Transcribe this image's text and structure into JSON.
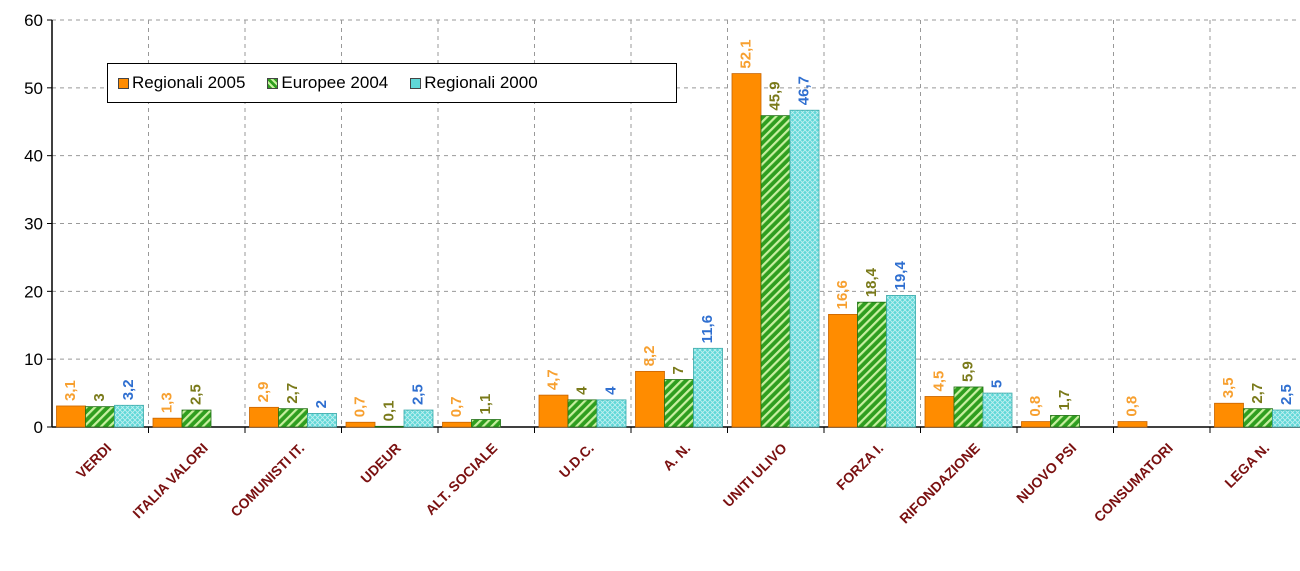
{
  "colors": {
    "regionali2005": "#ff8c00",
    "europee2004_fill": "#2f9e1f",
    "europee2004_stripe": "#c8f0a0",
    "regionali2000": "#5fd7d7",
    "label2005": "#f7a030",
    "label2004": "#7a7a1a",
    "label2000": "#2f6fd0",
    "category_label": "#7a1010",
    "grid": "#999999"
  },
  "chart_data": {
    "type": "bar",
    "ylim": [
      0,
      60
    ],
    "yticks": [
      "0",
      "10",
      "20",
      "30",
      "40",
      "50",
      "60"
    ],
    "categories": [
      "VERDI",
      "ITALIA VALORI",
      "COMUNISTI IT.",
      "UDEUR",
      "ALT. SOCIALE",
      "U.D.C.",
      "A. N.",
      "UNITI ULIVO",
      "FORZA I.",
      "RIFONDAZIONE",
      "NUOVO PSI",
      "CONSUMATORI",
      "LEGA N."
    ],
    "grid": true,
    "legend_position": "top-left",
    "series": [
      {
        "name": "Regionali 2005",
        "values": [
          3.1,
          1.3,
          2.9,
          0.7,
          0.7,
          4.7,
          8.2,
          52.1,
          16.6,
          4.5,
          0.8,
          0.8,
          3.5
        ],
        "labels": [
          "3,1",
          "1,3",
          "2,9",
          "0,7",
          "0,7",
          "4,7",
          "8,2",
          "52,1",
          "16,6",
          "4,5",
          "0,8",
          "0,8",
          "3,5"
        ]
      },
      {
        "name": "Europee 2004",
        "values": [
          3,
          2.5,
          2.7,
          0.1,
          1.1,
          4,
          7,
          45.9,
          18.4,
          5.9,
          1.7,
          null,
          2.7
        ],
        "labels": [
          "3",
          "2,5",
          "2,7",
          "0,1",
          "1,1",
          "4",
          "7",
          "45,9",
          "18,4",
          "5,9",
          "1,7",
          "",
          "2,7"
        ]
      },
      {
        "name": "Regionali 2000",
        "values": [
          3.2,
          null,
          2,
          2.5,
          null,
          4,
          11.6,
          46.7,
          19.4,
          5,
          null,
          null,
          2.5
        ],
        "labels": [
          "3,2",
          "",
          "2",
          "2,5",
          "",
          "4",
          "11,6",
          "46,7",
          "19,4",
          "5",
          "",
          "",
          "2,5"
        ]
      }
    ]
  }
}
